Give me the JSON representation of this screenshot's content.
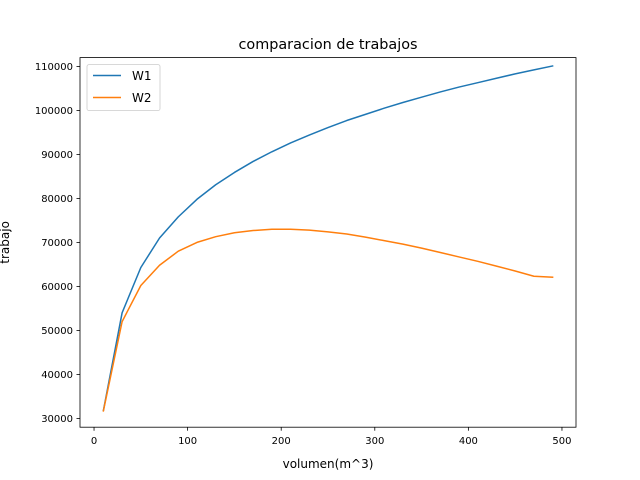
{
  "chart_data": {
    "type": "line",
    "title": "comparacion de trabajos",
    "xlabel": "volumen(m^3)",
    "ylabel": "trabajo",
    "xlim": [
      -15,
      515
    ],
    "ylim": [
      28000,
      112000
    ],
    "xticks": [
      0,
      100,
      200,
      300,
      400,
      500
    ],
    "yticks": [
      30000,
      40000,
      50000,
      60000,
      70000,
      80000,
      90000,
      100000,
      110000
    ],
    "grid": false,
    "legend_position": "top-left",
    "x": [
      10,
      30,
      50,
      70,
      90,
      110,
      130,
      150,
      170,
      190,
      210,
      230,
      250,
      270,
      290,
      310,
      330,
      350,
      370,
      390,
      410,
      430,
      450,
      470,
      490
    ],
    "series": [
      {
        "name": "W1",
        "color": "#1f77b4",
        "values": [
          31800,
          54000,
          64300,
          71000,
          75800,
          79800,
          83100,
          85900,
          88400,
          90600,
          92600,
          94400,
          96100,
          97700,
          99100,
          100500,
          101800,
          103000,
          104200,
          105300,
          106300,
          107300,
          108300,
          109200,
          110100
        ]
      },
      {
        "name": "W2",
        "color": "#ff7f0e",
        "values": [
          31700,
          52000,
          60200,
          64800,
          68000,
          70000,
          71300,
          72200,
          72700,
          73000,
          73000,
          72800,
          72400,
          71900,
          71200,
          70400,
          69600,
          68700,
          67700,
          66700,
          65700,
          64600,
          63500,
          62300,
          62100
        ]
      }
    ]
  }
}
